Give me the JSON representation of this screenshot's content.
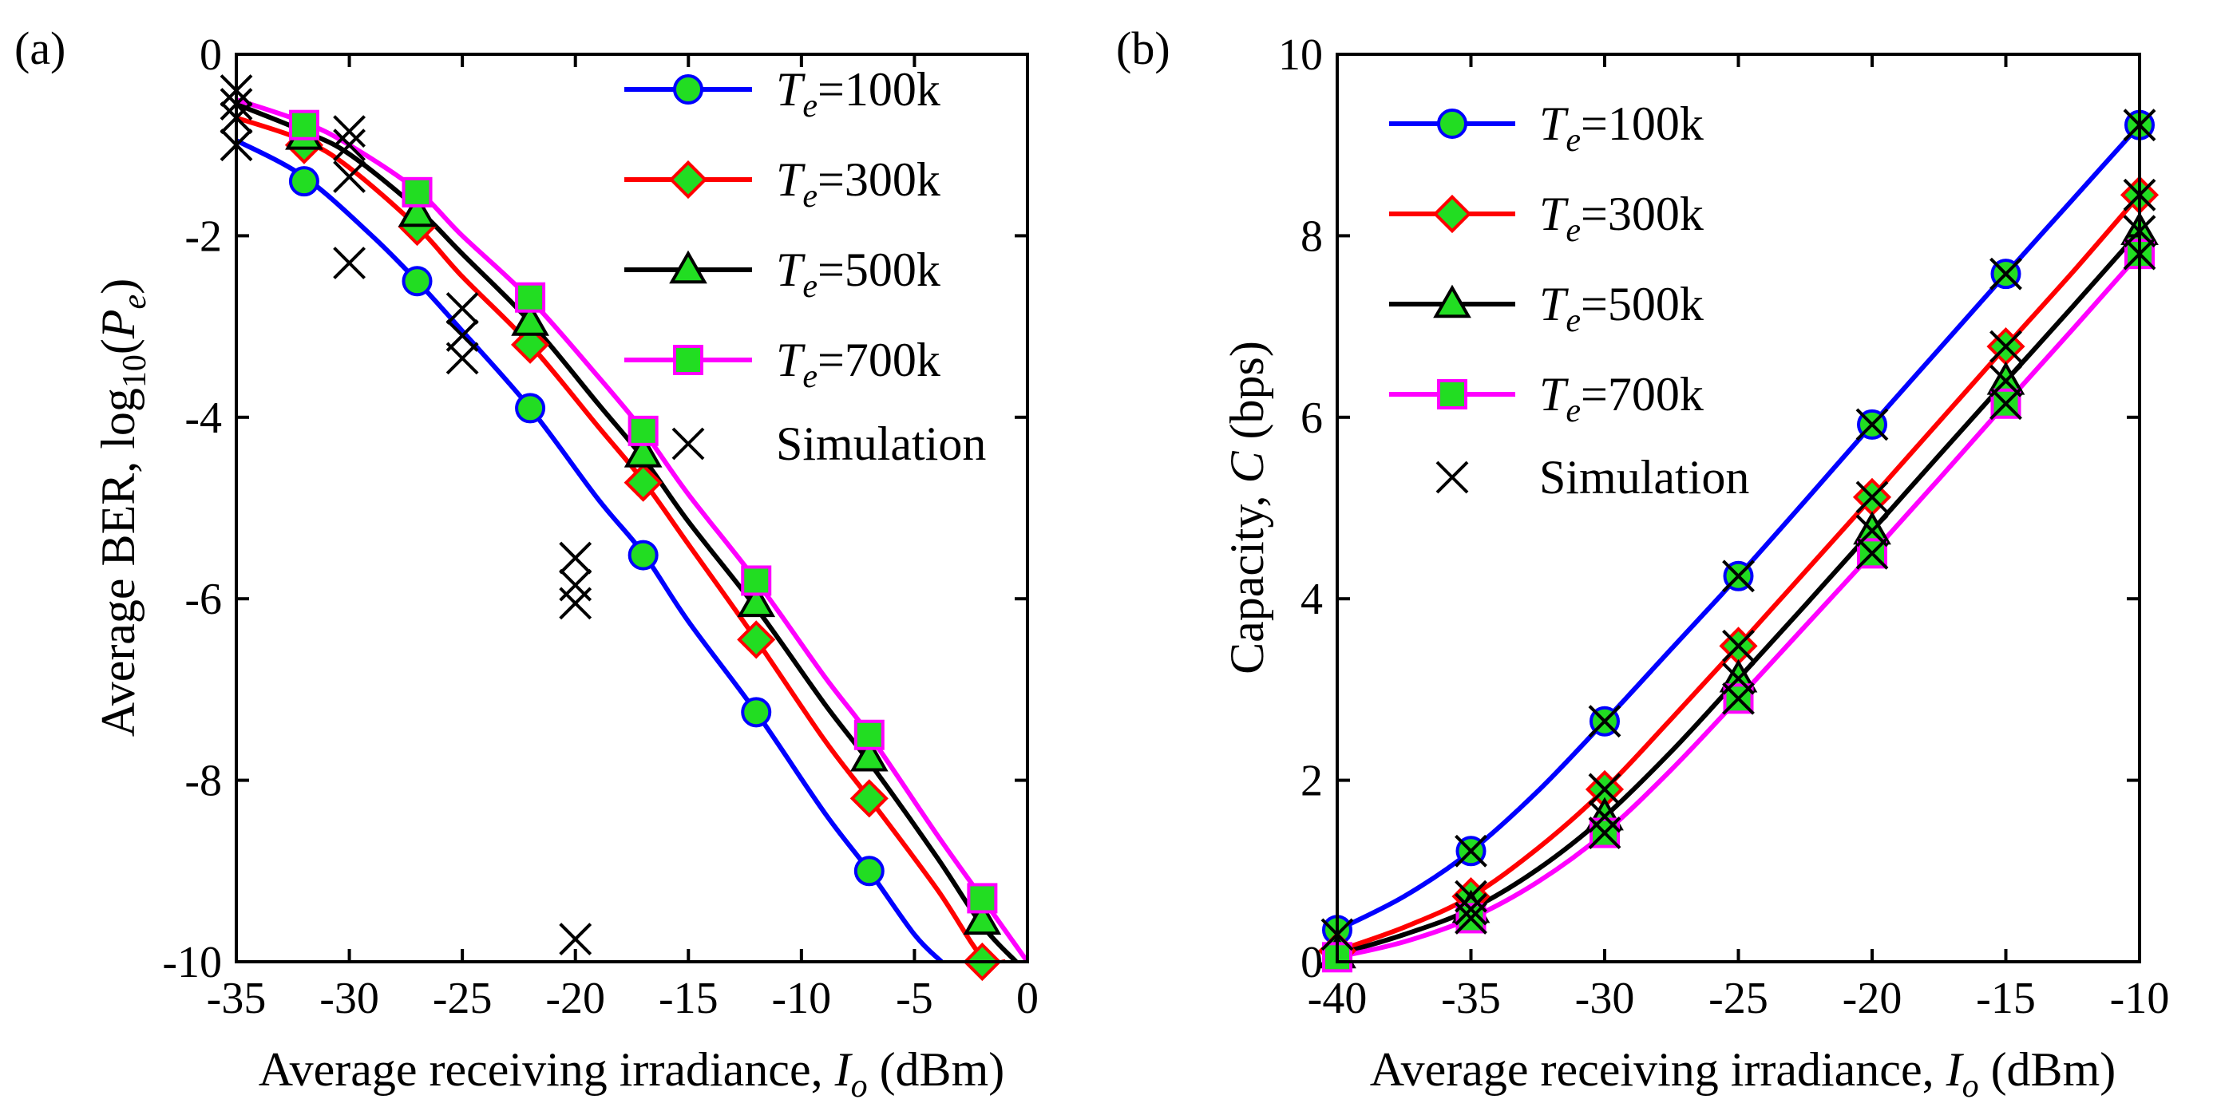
{
  "chart_data": [
    {
      "panel_label": "(a)",
      "type": "line",
      "title": "",
      "xlabel_prefix": "Average receiving irradiance, ",
      "xlabel_var": "I",
      "xlabel_sub": "o",
      "xlabel_suffix": " (dBm)",
      "ylabel_prefix": "Average BER, log",
      "ylabel_sub": "10",
      "ylabel_open": "(",
      "ylabel_var": "P",
      "ylabel_var_sub": "e",
      "ylabel_close": ")",
      "xlim": [
        -35,
        0
      ],
      "ylim": [
        -10,
        0
      ],
      "xticks": [
        -35,
        -30,
        -25,
        -20,
        -15,
        -10,
        -5,
        0
      ],
      "yticks": [
        -10,
        -8,
        -6,
        -4,
        -2,
        0
      ],
      "xtick_labels": [
        "-35",
        "-30",
        "-25",
        "-20",
        "-15",
        "-10",
        "-5",
        "0"
      ],
      "ytick_labels": [
        "-10",
        "-8",
        "-6",
        "-4",
        "-2",
        "0"
      ],
      "legend_position": "top-right",
      "series": [
        {
          "name": "Te=100k",
          "legend_var": "T",
          "legend_sub": "e",
          "legend_value": "=100k",
          "color": "#0000ff",
          "marker": "circle",
          "curve_x": [
            -35,
            -32,
            -29,
            -27,
            -25,
            -22,
            -19,
            -17,
            -15,
            -12,
            -9,
            -7,
            -5,
            -3.8
          ],
          "curve_y": [
            -0.95,
            -1.35,
            -2.0,
            -2.5,
            -3.05,
            -3.9,
            -4.9,
            -5.5,
            -6.25,
            -7.25,
            -8.35,
            -9.0,
            -9.7,
            -10.0
          ],
          "marker_x": [
            -32,
            -27,
            -22,
            -17,
            -12,
            -7
          ],
          "marker_y": [
            -1.4,
            -2.5,
            -3.9,
            -5.52,
            -7.25,
            -9.0
          ]
        },
        {
          "name": "Te=300k",
          "legend_var": "T",
          "legend_sub": "e",
          "legend_value": "=300k",
          "color": "#ff0000",
          "marker": "diamond",
          "curve_x": [
            -35,
            -32,
            -30,
            -27,
            -25,
            -22,
            -19,
            -17,
            -15,
            -12,
            -9,
            -7,
            -4,
            -2,
            -1
          ],
          "curve_y": [
            -0.7,
            -0.95,
            -1.25,
            -1.9,
            -2.45,
            -3.2,
            -4.1,
            -4.7,
            -5.4,
            -6.45,
            -7.55,
            -8.2,
            -9.2,
            -9.95,
            -10.0
          ],
          "marker_x": [
            -32,
            -27,
            -22,
            -17,
            -12,
            -7,
            -2
          ],
          "marker_y": [
            -1.0,
            -1.9,
            -3.2,
            -4.72,
            -6.45,
            -8.2,
            -10.0
          ]
        },
        {
          "name": "Te=500k",
          "legend_var": "T",
          "legend_sub": "e",
          "legend_value": "=500k",
          "color": "#000000",
          "marker": "triangle",
          "curve_x": [
            -35,
            -32,
            -30,
            -27,
            -25,
            -22,
            -19,
            -17,
            -15,
            -12,
            -9,
            -7,
            -4,
            -2,
            -0.5
          ],
          "curve_y": [
            -0.55,
            -0.85,
            -1.1,
            -1.7,
            -2.2,
            -2.95,
            -3.85,
            -4.45,
            -5.15,
            -6.1,
            -7.15,
            -7.8,
            -8.85,
            -9.6,
            -10.0
          ],
          "marker_x": [
            -32,
            -27,
            -22,
            -17,
            -12,
            -7,
            -2
          ],
          "marker_y": [
            -0.9,
            -1.75,
            -2.95,
            -4.4,
            -6.05,
            -7.75,
            -9.55
          ]
        },
        {
          "name": "Te=700k",
          "legend_var": "T",
          "legend_sub": "e",
          "legend_value": "=700k",
          "color": "#ff00ff",
          "marker": "square",
          "curve_x": [
            -35,
            -32,
            -30,
            -27,
            -25,
            -22,
            -19,
            -17,
            -15,
            -12,
            -9,
            -7,
            -4,
            -2,
            0
          ],
          "curve_y": [
            -0.5,
            -0.75,
            -1.0,
            -1.5,
            -2.0,
            -2.7,
            -3.55,
            -4.15,
            -4.85,
            -5.8,
            -6.85,
            -7.5,
            -8.6,
            -9.3,
            -10.0
          ],
          "marker_x": [
            -32,
            -27,
            -22,
            -17,
            -12,
            -7,
            -2
          ],
          "marker_y": [
            -0.78,
            -1.52,
            -2.68,
            -4.15,
            -5.8,
            -7.5,
            -9.3
          ]
        }
      ],
      "simulation": {
        "name": "Simulation",
        "x": [
          -35,
          -35,
          -35,
          -35,
          -30,
          -30,
          -30,
          -30,
          -25,
          -25,
          -25,
          -20,
          -20,
          -20,
          -20
        ],
        "y": [
          -0.4,
          -0.55,
          -0.7,
          -1.0,
          -0.85,
          -1.0,
          -1.35,
          -2.3,
          -2.8,
          -3.1,
          -3.35,
          -5.55,
          -5.85,
          -6.05,
          -9.75
        ]
      }
    },
    {
      "panel_label": "(b)",
      "type": "line",
      "title": "",
      "xlabel_prefix": "Average receiving irradiance, ",
      "xlabel_var": "I",
      "xlabel_sub": "o",
      "xlabel_suffix": " (dBm)",
      "ylabel_prefix": "Capacity, ",
      "ylabel_var": "C",
      "ylabel_suffix": " (bps)",
      "xlim": [
        -40,
        -10
      ],
      "ylim": [
        0,
        10
      ],
      "xticks": [
        -40,
        -35,
        -30,
        -25,
        -20,
        -15,
        -10
      ],
      "yticks": [
        0,
        2,
        4,
        6,
        8,
        10
      ],
      "xtick_labels": [
        "-40",
        "-35",
        "-30",
        "-25",
        "-20",
        "-15",
        "-10"
      ],
      "ytick_labels": [
        "0",
        "2",
        "4",
        "6",
        "8",
        "10"
      ],
      "legend_position": "top-left",
      "series": [
        {
          "name": "Te=100k",
          "legend_var": "T",
          "legend_sub": "e",
          "legend_value": "=100k",
          "color": "#0000ff",
          "marker": "circle",
          "curve_x": [
            -40,
            -37.5,
            -35,
            -32.5,
            -30,
            -27.5,
            -25,
            -22.5,
            -20,
            -17.5,
            -15,
            -12.5,
            -10
          ],
          "curve_y": [
            0.35,
            0.72,
            1.22,
            1.88,
            2.65,
            3.45,
            4.25,
            5.08,
            5.92,
            6.75,
            7.58,
            8.4,
            9.22
          ],
          "marker_x": [
            -40,
            -35,
            -30,
            -25,
            -20,
            -15,
            -10
          ],
          "marker_y": [
            0.35,
            1.22,
            2.65,
            4.25,
            5.92,
            7.58,
            9.22
          ]
        },
        {
          "name": "Te=300k",
          "legend_var": "T",
          "legend_sub": "e",
          "legend_value": "=300k",
          "color": "#ff0000",
          "marker": "diamond",
          "curve_x": [
            -40,
            -37.5,
            -35,
            -32.5,
            -30,
            -27.5,
            -25,
            -22.5,
            -20,
            -17.5,
            -15,
            -12.5,
            -10
          ],
          "curve_y": [
            0.12,
            0.38,
            0.72,
            1.25,
            1.9,
            2.68,
            3.48,
            4.3,
            5.12,
            5.95,
            6.78,
            7.6,
            8.45
          ],
          "marker_x": [
            -40,
            -35,
            -30,
            -25,
            -20,
            -15,
            -10
          ],
          "marker_y": [
            0.12,
            0.72,
            1.9,
            3.48,
            5.12,
            6.78,
            8.45
          ]
        },
        {
          "name": "Te=500k",
          "legend_var": "T",
          "legend_sub": "e",
          "legend_value": "=500k",
          "color": "#000000",
          "marker": "triangle",
          "curve_x": [
            -40,
            -37.5,
            -35,
            -32.5,
            -30,
            -27.5,
            -25,
            -22.5,
            -20,
            -17.5,
            -15,
            -12.5,
            -10
          ],
          "curve_y": [
            0.08,
            0.3,
            0.58,
            1.02,
            1.6,
            2.32,
            3.12,
            3.93,
            4.75,
            5.58,
            6.4,
            7.22,
            8.05
          ],
          "marker_x": [
            -40,
            -35,
            -30,
            -25,
            -20,
            -15,
            -10
          ],
          "marker_y": [
            0.08,
            0.58,
            1.6,
            3.12,
            4.75,
            6.4,
            8.05
          ]
        },
        {
          "name": "Te=700k",
          "legend_var": "T",
          "legend_sub": "e",
          "legend_value": "=700k",
          "color": "#ff00ff",
          "marker": "square",
          "curve_x": [
            -40,
            -37.5,
            -35,
            -32.5,
            -30,
            -27.5,
            -25,
            -22.5,
            -20,
            -17.5,
            -15,
            -12.5,
            -10
          ],
          "curve_y": [
            0.05,
            0.22,
            0.48,
            0.88,
            1.42,
            2.12,
            2.9,
            3.7,
            4.5,
            5.32,
            6.15,
            6.97,
            7.8
          ],
          "marker_x": [
            -40,
            -35,
            -30,
            -25,
            -20,
            -15,
            -10
          ],
          "marker_y": [
            0.05,
            0.48,
            1.42,
            2.9,
            4.5,
            6.15,
            7.8
          ]
        }
      ],
      "simulation": {
        "name": "Simulation",
        "x": [
          -40,
          -35,
          -35,
          -35,
          -35,
          -30,
          -30,
          -30,
          -30,
          -25,
          -25,
          -25,
          -25,
          -20,
          -20,
          -20,
          -20,
          -15,
          -15,
          -15,
          -15,
          -10,
          -10,
          -10,
          -10
        ],
        "y": [
          0.3,
          1.22,
          0.72,
          0.58,
          0.48,
          2.65,
          1.9,
          1.6,
          1.42,
          4.25,
          3.48,
          3.12,
          2.9,
          5.92,
          5.12,
          4.75,
          4.5,
          7.58,
          6.78,
          6.4,
          6.15,
          9.22,
          8.45,
          8.05,
          7.8
        ]
      }
    }
  ]
}
